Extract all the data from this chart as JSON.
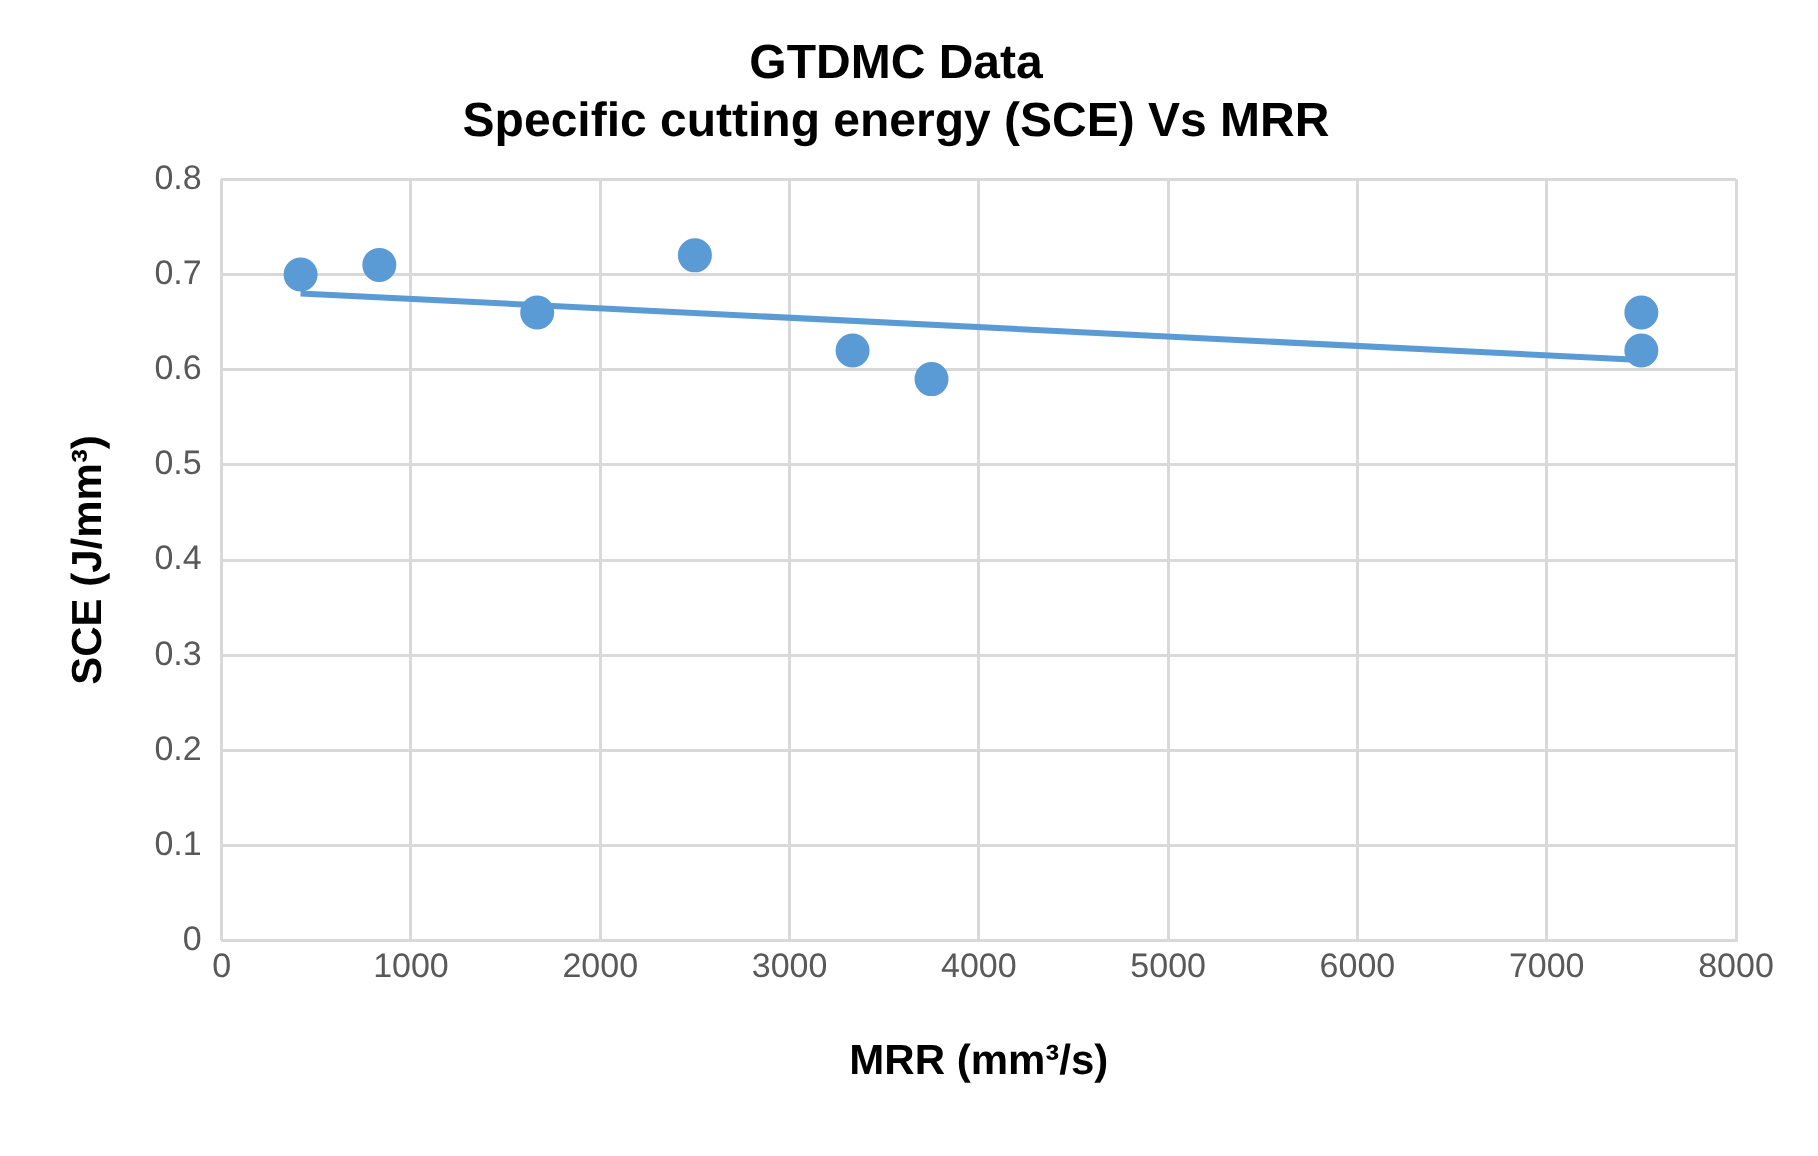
{
  "chart_data": {
    "type": "scatter",
    "title": [
      "GTDMC Data",
      "Specific cutting energy (SCE) Vs MRR"
    ],
    "xlabel": "MRR (mm³/s)",
    "ylabel": "SCE (J/mm³)",
    "series": [
      {
        "color": "#5b9bd5",
        "x": [
          417,
          833,
          1667,
          2500,
          3333,
          3750,
          7500,
          7500
        ],
        "values": [
          0.7,
          0.71,
          0.66,
          0.72,
          0.62,
          0.59,
          0.66,
          0.62
        ],
        "marker": "circle"
      },
      {
        "type": "line",
        "color": "#5b9bd5",
        "x": [
          417,
          7500
        ],
        "values": [
          0.68,
          0.61
        ],
        "marker": "none",
        "line_style": "solid"
      }
    ],
    "xlim": [
      0,
      8000
    ],
    "xticks": [
      0,
      1000,
      2000,
      3000,
      4000,
      5000,
      6000,
      7000,
      8000
    ],
    "ylim": [
      0,
      0.8
    ],
    "yticks": [
      0,
      0.1,
      0.2,
      0.3,
      0.4,
      0.5,
      0.6,
      0.7,
      0.8
    ],
    "grid": true,
    "legend": false
  }
}
